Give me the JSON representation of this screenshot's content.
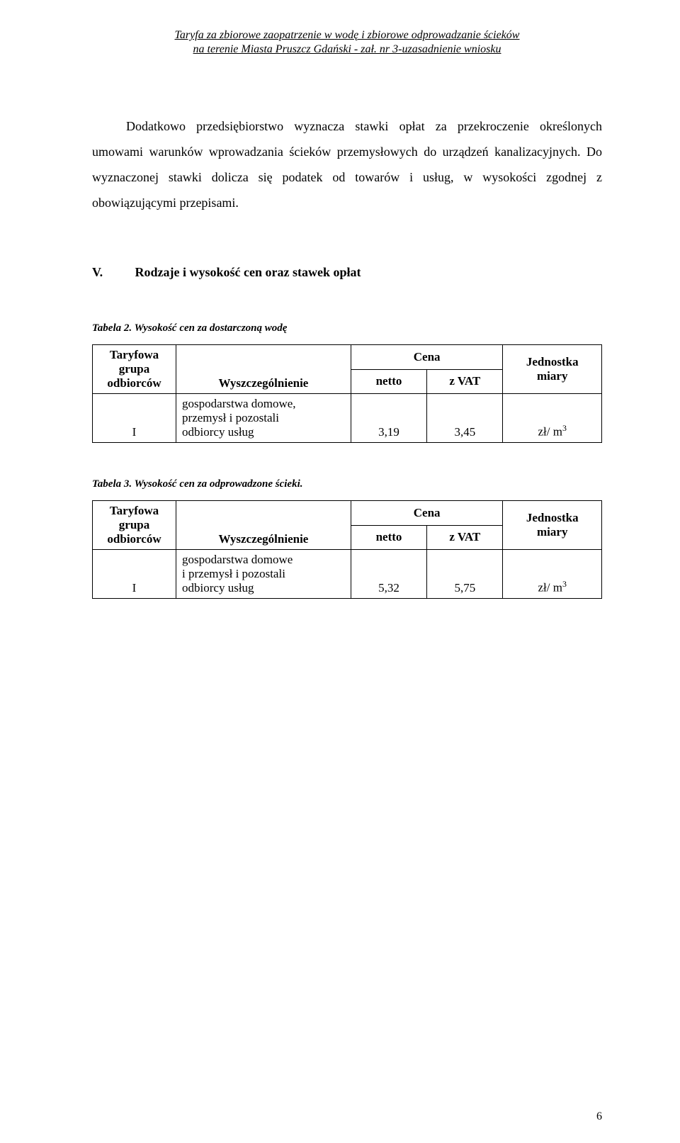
{
  "header": {
    "line1": "Taryfa za zbiorowe zaopatrzenie w wodę i zbiorowe odprowadzanie ścieków",
    "line2": "na terenie Miasta Pruszcz Gdański  - zał. nr 3-uzasadnienie  wniosku"
  },
  "paragraphs": {
    "p1": "Dodatkowo przedsiębiorstwo wyznacza stawki opłat za przekroczenie określonych umowami warunków wprowadzania ścieków przemysłowych do urządzeń kanalizacyjnych. Do wyznaczonej stawki dolicza się podatek od towarów i usług, w wysokości zgodnej z obowiązującymi przepisami."
  },
  "section": {
    "roman": "V.",
    "title": "Rodzaje i wysokość cen oraz stawek opłat"
  },
  "table2": {
    "caption": "Tabela 2. Wysokość cen za dostarczoną wodę",
    "head": {
      "group_l1": "Taryfowa",
      "group_l2": "grupa",
      "group_l3": "odbiorców",
      "spec": "Wyszczególnienie",
      "cena": "Cena",
      "netto": "netto",
      "zvat": "z VAT",
      "unit_l1": "Jednostka",
      "unit_l2": "miary"
    },
    "row": {
      "group": "I",
      "spec_l1": "gospodarstwa domowe,",
      "spec_l2": "przemysł i pozostali",
      "spec_l3": "odbiorcy usług",
      "netto": "3,19",
      "zvat": "3,45",
      "unit_base": "zł/ m",
      "unit_exp": "3"
    }
  },
  "table3": {
    "caption": "Tabela 3. Wysokość cen za odprowadzone ścieki.",
    "head": {
      "group_l1": "Taryfowa",
      "group_l2": "grupa",
      "group_l3": "odbiorców",
      "spec": "Wyszczególnienie",
      "cena": "Cena",
      "netto": "netto",
      "zvat": "z VAT",
      "unit_l1": "Jednostka",
      "unit_l2": "miary"
    },
    "row": {
      "group": "I",
      "spec_l1": "gospodarstwa domowe",
      "spec_l2": "i przemysł i pozostali",
      "spec_l3": "odbiorcy usług",
      "netto": "5,32",
      "zvat": "5,75",
      "unit_base": "zł/ m",
      "unit_exp": "3"
    }
  },
  "page_number": "6",
  "colors": {
    "text": "#000000",
    "background": "#ffffff",
    "border": "#000000"
  }
}
